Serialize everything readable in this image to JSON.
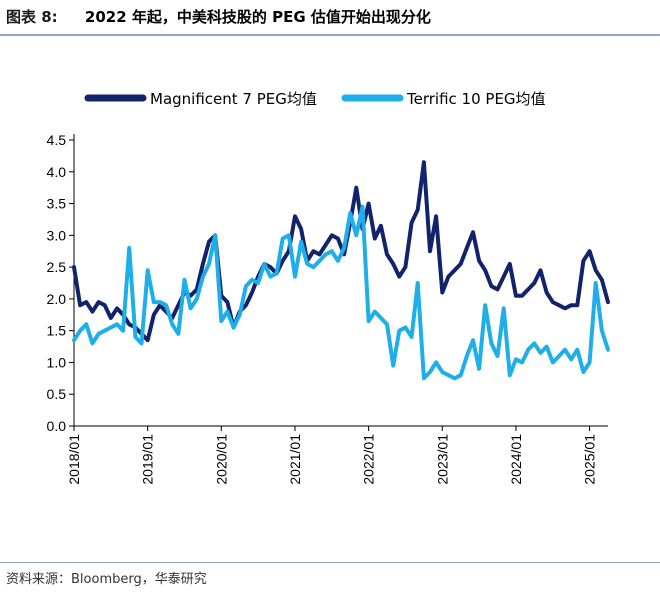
{
  "figure": {
    "label": "图表 8:",
    "title": "2022 年起，中美科技股的 PEG 估值开始出现分化",
    "source": "资料来源：Bloomberg，华泰研究"
  },
  "chart_data": {
    "type": "line",
    "title": "2022 年起，中美科技股的 PEG 估值开始出现分化",
    "xlabel": "",
    "ylabel": "",
    "ylim": [
      0,
      4.5
    ],
    "y_ticks": [
      "0.0",
      "0.5",
      "1.0",
      "1.5",
      "2.0",
      "2.5",
      "3.0",
      "3.5",
      "4.0",
      "4.5"
    ],
    "x_ticks": [
      "2018/01",
      "2019/01",
      "2020/01",
      "2021/01",
      "2022/01",
      "2023/01",
      "2024/01",
      "2025/01"
    ],
    "x_range": [
      "2018/01",
      "2025/04"
    ],
    "grid": false,
    "legend_position": "top",
    "series": [
      {
        "name": "Magnificent 7 PEG均值",
        "color": "#12236b",
        "points": [
          [
            "2018/01",
            2.5
          ],
          [
            "2018/02",
            1.9
          ],
          [
            "2018/03",
            1.95
          ],
          [
            "2018/04",
            1.8
          ],
          [
            "2018/05",
            1.95
          ],
          [
            "2018/06",
            1.9
          ],
          [
            "2018/07",
            1.7
          ],
          [
            "2018/08",
            1.85
          ],
          [
            "2018/09",
            1.75
          ],
          [
            "2018/10",
            1.6
          ],
          [
            "2018/11",
            1.55
          ],
          [
            "2018/12",
            1.45
          ],
          [
            "2019/01",
            1.35
          ],
          [
            "2019/02",
            1.75
          ],
          [
            "2019/03",
            1.9
          ],
          [
            "2019/04",
            1.8
          ],
          [
            "2019/05",
            1.7
          ],
          [
            "2019/06",
            1.9
          ],
          [
            "2019/07",
            2.1
          ],
          [
            "2019/08",
            2.05
          ],
          [
            "2019/09",
            2.15
          ],
          [
            "2019/10",
            2.55
          ],
          [
            "2019/11",
            2.9
          ],
          [
            "2019/12",
            3.0
          ],
          [
            "2020/01",
            2.05
          ],
          [
            "2020/02",
            1.95
          ],
          [
            "2020/03",
            1.55
          ],
          [
            "2020/04",
            1.8
          ],
          [
            "2020/05",
            1.9
          ],
          [
            "2020/06",
            2.1
          ],
          [
            "2020/07",
            2.35
          ],
          [
            "2020/08",
            2.55
          ],
          [
            "2020/09",
            2.5
          ],
          [
            "2020/10",
            2.4
          ],
          [
            "2020/11",
            2.6
          ],
          [
            "2020/12",
            2.75
          ],
          [
            "2021/01",
            3.3
          ],
          [
            "2021/02",
            3.1
          ],
          [
            "2021/03",
            2.6
          ],
          [
            "2021/04",
            2.75
          ],
          [
            "2021/05",
            2.7
          ],
          [
            "2021/06",
            2.85
          ],
          [
            "2021/07",
            3.0
          ],
          [
            "2021/08",
            2.95
          ],
          [
            "2021/09",
            2.7
          ],
          [
            "2021/10",
            3.2
          ],
          [
            "2021/11",
            3.75
          ],
          [
            "2021/12",
            3.1
          ],
          [
            "2022/01",
            3.5
          ],
          [
            "2022/02",
            2.95
          ],
          [
            "2022/03",
            3.15
          ],
          [
            "2022/04",
            2.7
          ],
          [
            "2022/05",
            2.55
          ],
          [
            "2022/06",
            2.35
          ],
          [
            "2022/07",
            2.5
          ],
          [
            "2022/08",
            3.2
          ],
          [
            "2022/09",
            3.4
          ],
          [
            "2022/10",
            4.15
          ],
          [
            "2022/11",
            2.75
          ],
          [
            "2022/12",
            3.3
          ],
          [
            "2023/01",
            2.1
          ],
          [
            "2023/02",
            2.35
          ],
          [
            "2023/03",
            2.45
          ],
          [
            "2023/04",
            2.55
          ],
          [
            "2023/05",
            2.8
          ],
          [
            "2023/06",
            3.05
          ],
          [
            "2023/07",
            2.6
          ],
          [
            "2023/08",
            2.45
          ],
          [
            "2023/09",
            2.2
          ],
          [
            "2023/10",
            2.15
          ],
          [
            "2023/11",
            2.35
          ],
          [
            "2023/12",
            2.55
          ],
          [
            "2024/01",
            2.05
          ],
          [
            "2024/02",
            2.05
          ],
          [
            "2024/03",
            2.15
          ],
          [
            "2024/04",
            2.25
          ],
          [
            "2024/05",
            2.45
          ],
          [
            "2024/06",
            2.1
          ],
          [
            "2024/07",
            1.95
          ],
          [
            "2024/08",
            1.9
          ],
          [
            "2024/09",
            1.85
          ],
          [
            "2024/10",
            1.9
          ],
          [
            "2024/11",
            1.9
          ],
          [
            "2024/12",
            2.6
          ],
          [
            "2025/01",
            2.75
          ],
          [
            "2025/02",
            2.45
          ],
          [
            "2025/03",
            2.3
          ],
          [
            "2025/04",
            1.95
          ]
        ]
      },
      {
        "name": "Terrific 10 PEG均值",
        "color": "#1eaee9",
        "points": [
          [
            "2018/01",
            1.35
          ],
          [
            "2018/02",
            1.5
          ],
          [
            "2018/03",
            1.6
          ],
          [
            "2018/04",
            1.3
          ],
          [
            "2018/05",
            1.45
          ],
          [
            "2018/06",
            1.5
          ],
          [
            "2018/07",
            1.55
          ],
          [
            "2018/08",
            1.6
          ],
          [
            "2018/09",
            1.5
          ],
          [
            "2018/10",
            2.8
          ],
          [
            "2018/11",
            1.4
          ],
          [
            "2018/12",
            1.3
          ],
          [
            "2019/01",
            2.45
          ],
          [
            "2019/02",
            1.95
          ],
          [
            "2019/03",
            1.95
          ],
          [
            "2019/04",
            1.9
          ],
          [
            "2019/05",
            1.6
          ],
          [
            "2019/06",
            1.45
          ],
          [
            "2019/07",
            2.3
          ],
          [
            "2019/08",
            1.85
          ],
          [
            "2019/09",
            2.0
          ],
          [
            "2019/10",
            2.35
          ],
          [
            "2019/11",
            2.55
          ],
          [
            "2019/12",
            3.0
          ],
          [
            "2020/01",
            1.65
          ],
          [
            "2020/02",
            1.8
          ],
          [
            "2020/03",
            1.55
          ],
          [
            "2020/04",
            1.75
          ],
          [
            "2020/05",
            2.2
          ],
          [
            "2020/06",
            2.3
          ],
          [
            "2020/07",
            2.25
          ],
          [
            "2020/08",
            2.55
          ],
          [
            "2020/09",
            2.35
          ],
          [
            "2020/10",
            2.4
          ],
          [
            "2020/11",
            2.95
          ],
          [
            "2020/12",
            3.0
          ],
          [
            "2021/01",
            2.35
          ],
          [
            "2021/02",
            2.9
          ],
          [
            "2021/03",
            2.55
          ],
          [
            "2021/04",
            2.5
          ],
          [
            "2021/05",
            2.6
          ],
          [
            "2021/06",
            2.7
          ],
          [
            "2021/07",
            2.75
          ],
          [
            "2021/08",
            2.6
          ],
          [
            "2021/09",
            2.8
          ],
          [
            "2021/10",
            3.35
          ],
          [
            "2021/11",
            3.0
          ],
          [
            "2021/12",
            3.45
          ],
          [
            "2022/01",
            1.65
          ],
          [
            "2022/02",
            1.8
          ],
          [
            "2022/03",
            1.7
          ],
          [
            "2022/04",
            1.6
          ],
          [
            "2022/05",
            0.95
          ],
          [
            "2022/06",
            1.5
          ],
          [
            "2022/07",
            1.55
          ],
          [
            "2022/08",
            1.4
          ],
          [
            "2022/09",
            2.25
          ],
          [
            "2022/10",
            0.75
          ],
          [
            "2022/11",
            0.85
          ],
          [
            "2022/12",
            1.0
          ],
          [
            "2023/01",
            0.85
          ],
          [
            "2023/02",
            0.8
          ],
          [
            "2023/03",
            0.75
          ],
          [
            "2023/04",
            0.8
          ],
          [
            "2023/05",
            1.1
          ],
          [
            "2023/06",
            1.35
          ],
          [
            "2023/07",
            0.9
          ],
          [
            "2023/08",
            1.9
          ],
          [
            "2023/09",
            1.3
          ],
          [
            "2023/10",
            1.1
          ],
          [
            "2023/11",
            1.85
          ],
          [
            "2023/12",
            0.8
          ],
          [
            "2024/01",
            1.05
          ],
          [
            "2024/02",
            1.0
          ],
          [
            "2024/03",
            1.2
          ],
          [
            "2024/04",
            1.3
          ],
          [
            "2024/05",
            1.15
          ],
          [
            "2024/06",
            1.25
          ],
          [
            "2024/07",
            1.0
          ],
          [
            "2024/08",
            1.1
          ],
          [
            "2024/09",
            1.2
          ],
          [
            "2024/10",
            1.05
          ],
          [
            "2024/11",
            1.2
          ],
          [
            "2024/12",
            0.85
          ],
          [
            "2025/01",
            1.0
          ],
          [
            "2025/02",
            2.25
          ],
          [
            "2025/03",
            1.5
          ],
          [
            "2025/04",
            1.2
          ]
        ]
      }
    ]
  }
}
